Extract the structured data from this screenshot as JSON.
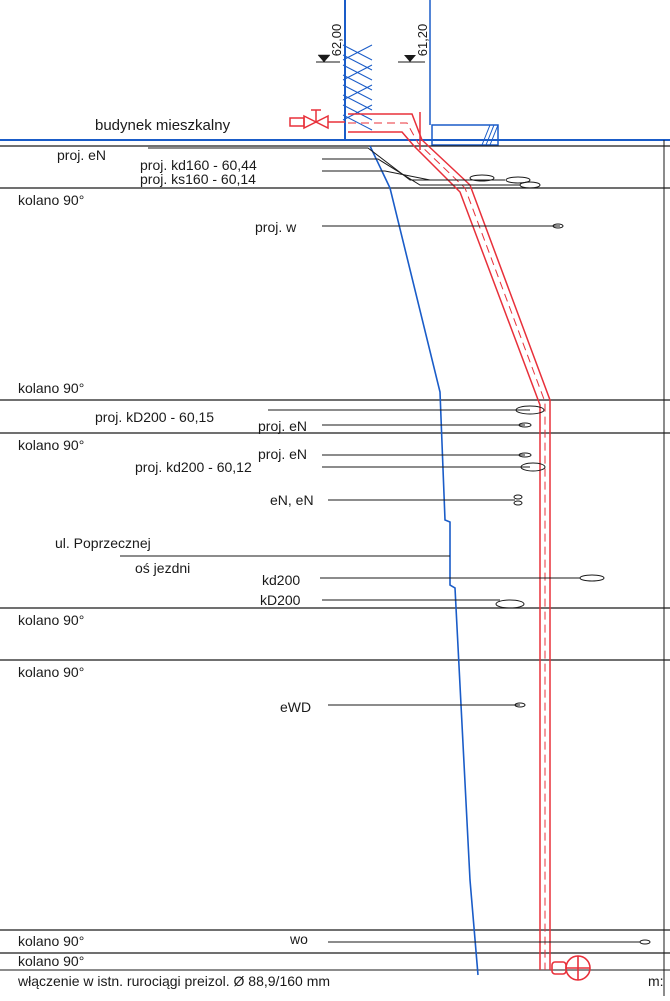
{
  "levels": {
    "left": "62,00",
    "right": "61,20"
  },
  "labels": {
    "building": "budynek mieszkalny",
    "connection": "włączenie w istn. rurociągi preizol. Ø 88,9/160 mm",
    "axis_marker": "m:",
    "street": "ul. Poprzecznej",
    "road_axis": "oś jezdni"
  },
  "section_labels": [
    "kolano 90°",
    "kolano 90°",
    "kolano 90°",
    "kolano 90°",
    "kolano 90°",
    "kolano 90°",
    "kolano 90°"
  ],
  "crossings": [
    "proj. eN",
    "proj. kd160 - 60,44",
    "proj. ks160 - 60,14",
    "proj. w",
    "proj. kD200 - 60,15",
    "proj. eN",
    "proj. eN",
    "proj. kd200 - 60,12",
    "eN, eN",
    "kd200",
    "kD200",
    "eWD",
    "wo"
  ],
  "colors": {
    "pipe": "#e8303a",
    "terrain": "#1a5cc8",
    "lines": "#1a1a1a"
  },
  "icons": {
    "valve": "valve-icon",
    "pipe_end": "pipe-end-circle-icon"
  }
}
